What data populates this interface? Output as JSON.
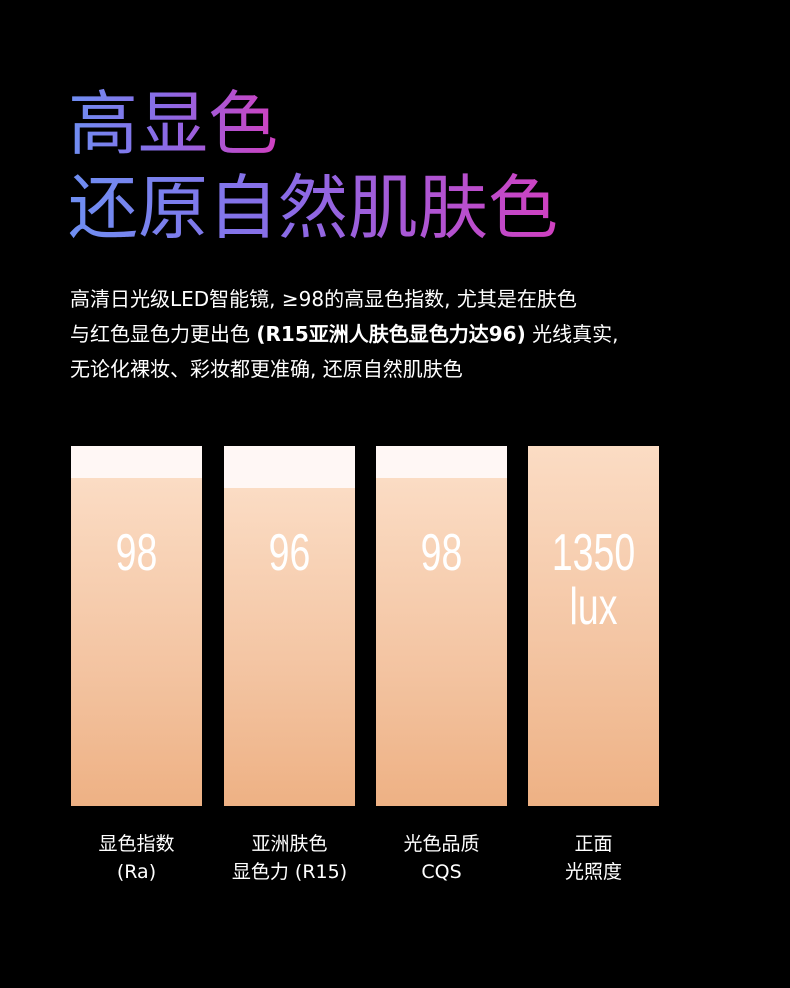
{
  "title": {
    "line1": "高显色",
    "line2": "还原自然肌肤色"
  },
  "description": {
    "lines": [
      [
        "高清日光级LED智能镜, ≥98的高显色指数, 尤其是在肤色"
      ],
      [
        "与红色显色力更出色 ",
        "(R15亚洲人肤色显色力达96)",
        " 光线真实,"
      ],
      [
        "无论化裸妆、彩妆都更准确, 还原自然肌肤色"
      ]
    ]
  },
  "metrics": [
    {
      "value": [
        "98"
      ],
      "label": [
        "显色指数",
        "(Ra)"
      ]
    },
    {
      "value": [
        "96"
      ],
      "label": [
        "亚洲肤色",
        "显色力 (R15)"
      ]
    },
    {
      "value": [
        "98"
      ],
      "label": [
        "光色品质",
        "CQS"
      ]
    },
    {
      "value": [
        "1350",
        "lux"
      ],
      "label": [
        "正面",
        "光照度"
      ]
    }
  ]
}
